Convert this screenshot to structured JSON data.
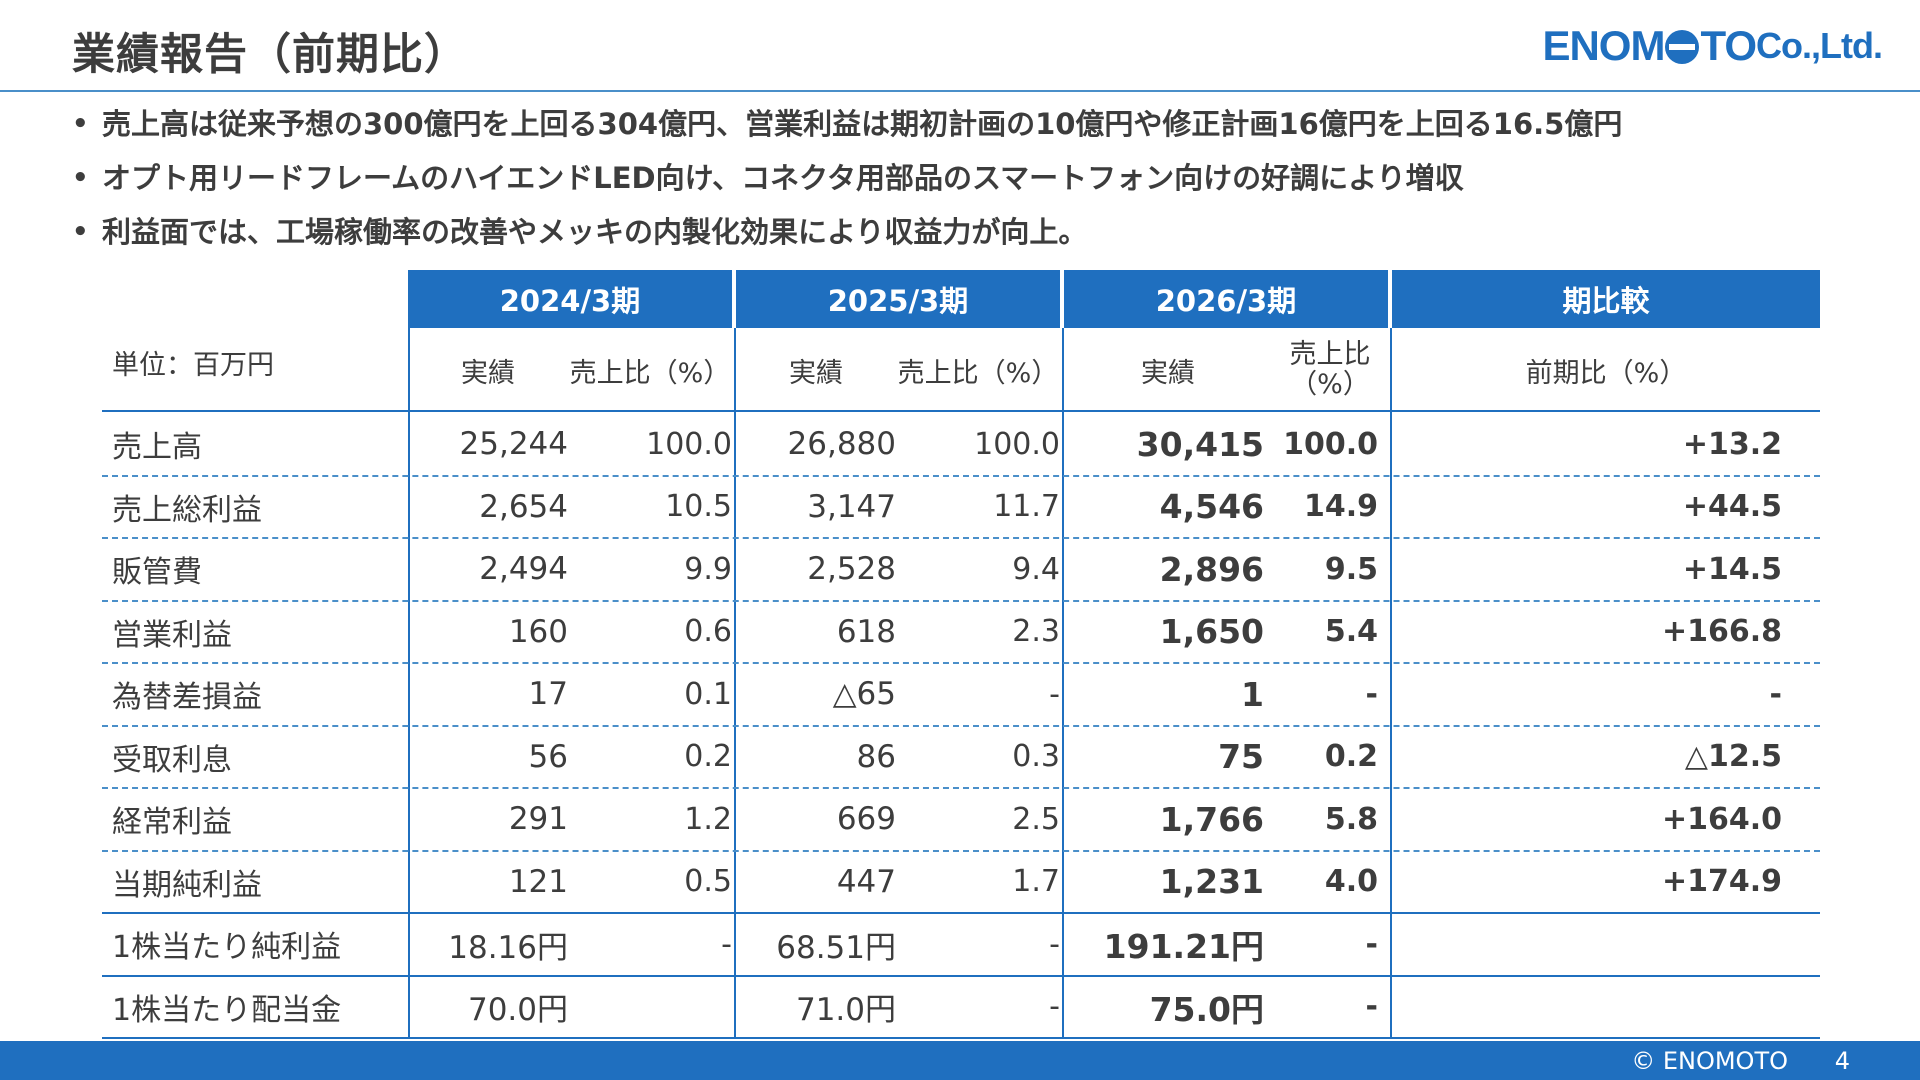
{
  "page": {
    "title": "業績報告（前期比）",
    "logo_text_1": "ENOM",
    "logo_text_2": "TO",
    "logo_text_3": " Co.,Ltd."
  },
  "bullets": [
    "売上高は従来予想の300億円を上回る304億円、営業利益は期初計画の10億円や修正計画16億円を上回る16.5億円",
    "オプト用リードフレームのハイエンドLED向け、コネクタ用部品のスマートフォン向けの好調により増収",
    "利益面では、工場稼働率の改善やメッキの内製化効果により収益力が向上。"
  ],
  "table": {
    "unit_label": "単位：百万円",
    "periods": [
      "2024/3期",
      "2025/3期",
      "2026/3期",
      "期比較"
    ],
    "sub_headers": {
      "actual": "実績",
      "sales_ratio": "売上比（%）",
      "sales_ratio_line1": "売上比",
      "sales_ratio_line2": "（%）",
      "yoy": "前期比（%）"
    },
    "rows": [
      {
        "label": "売上高",
        "v2024": "25,244",
        "r2024": "100.0",
        "v2025": "26,880",
        "r2025": "100.0",
        "v2026": "30,415",
        "r2026": "100.0",
        "yoy": "+13.2"
      },
      {
        "label": "売上総利益",
        "v2024": "2,654",
        "r2024": "10.5",
        "v2025": "3,147",
        "r2025": "11.7",
        "v2026": "4,546",
        "r2026": "14.9",
        "yoy": "+44.5"
      },
      {
        "label": "販管費",
        "v2024": "2,494",
        "r2024": "9.9",
        "v2025": "2,528",
        "r2025": "9.4",
        "v2026": "2,896",
        "r2026": "9.5",
        "yoy": "+14.5"
      },
      {
        "label": "営業利益",
        "v2024": "160",
        "r2024": "0.6",
        "v2025": "618",
        "r2025": "2.3",
        "v2026": "1,650",
        "r2026": "5.4",
        "yoy": "+166.8"
      },
      {
        "label": "為替差損益",
        "v2024": "17",
        "r2024": "0.1",
        "v2025": "△65",
        "r2025": "-",
        "v2026": "1",
        "r2026": "-",
        "yoy": "-"
      },
      {
        "label": "受取利息",
        "v2024": "56",
        "r2024": "0.2",
        "v2025": "86",
        "r2025": "0.3",
        "v2026": "75",
        "r2026": "0.2",
        "yoy": "△12.5"
      },
      {
        "label": "経常利益",
        "v2024": "291",
        "r2024": "1.2",
        "v2025": "669",
        "r2025": "2.5",
        "v2026": "1,766",
        "r2026": "5.8",
        "yoy": "+164.0"
      },
      {
        "label": "当期純利益",
        "v2024": "121",
        "r2024": "0.5",
        "v2025": "447",
        "r2025": "1.7",
        "v2026": "1,231",
        "r2026": "4.0",
        "yoy": "+174.9"
      },
      {
        "label": "1株当たり純利益",
        "v2024": "18.16円",
        "r2024": "-",
        "v2025": "68.51円",
        "r2025": "-",
        "v2026": "191.21円",
        "r2026": "-",
        "yoy": ""
      },
      {
        "label": "1株当たり配当金",
        "v2024": "70.0円",
        "r2024": "",
        "v2025": "71.0円",
        "r2025": "-",
        "v2026": "75.0円",
        "r2026": "-",
        "yoy": ""
      }
    ]
  },
  "footer": {
    "copyright": "© ENOMOTO",
    "page_number": "4"
  },
  "colors": {
    "accent": "#1f6fbf",
    "text": "#3d3d3d"
  }
}
